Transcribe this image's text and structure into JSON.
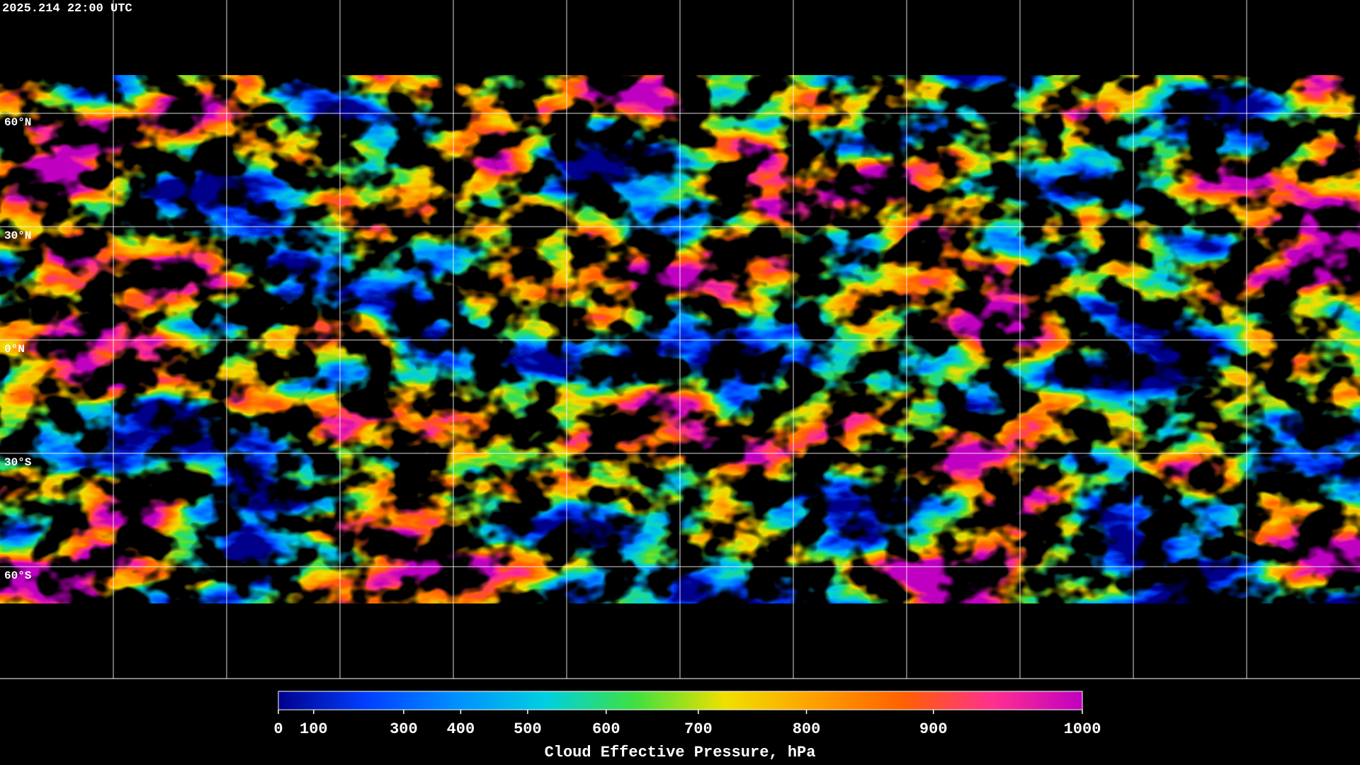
{
  "timestamp": "2025.214 22:00 UTC",
  "map": {
    "latitude_labels": [
      "60°N",
      "30°N",
      "0°N",
      "30°S",
      "60°S"
    ]
  },
  "colorbar": {
    "title": "Cloud Effective Pressure, hPa",
    "range": [
      0,
      1000
    ],
    "ticks": [
      0,
      100,
      300,
      400,
      500,
      600,
      700,
      800,
      900,
      1000
    ],
    "colors": [
      "#00008c",
      "#0040ff",
      "#0090ff",
      "#00d0e0",
      "#40e040",
      "#f0e000",
      "#ffa000",
      "#ff6000",
      "#ff3090",
      "#c000c0"
    ]
  }
}
